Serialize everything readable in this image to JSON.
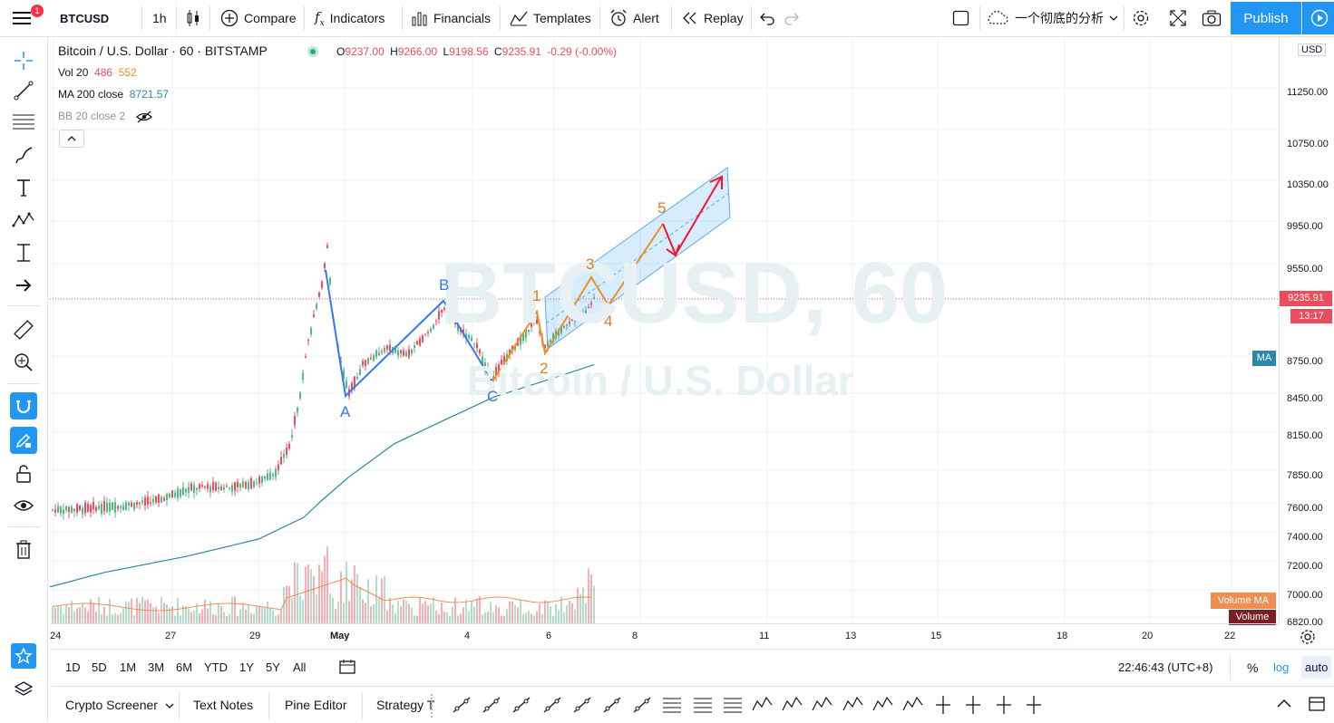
{
  "toolbar": {
    "symbol": "BTCUSD",
    "interval": "1h",
    "compare": "Compare",
    "indicators": "Indicators",
    "financials": "Financials",
    "templates": "Templates",
    "alert": "Alert",
    "replay": "Replay",
    "layout_name": "一个彻底的分析",
    "publish": "Publish",
    "notification_count": "1"
  },
  "legend": {
    "title": "Bitcoin / U.S. Dollar · 60 · BITSTAMP",
    "open_label": "O",
    "open": "9237.00",
    "high_label": "H",
    "high": "9266.00",
    "low_label": "L",
    "low": "9198.56",
    "close_label": "C",
    "close": "9235.91",
    "change": "-0.29 (-0.00%)",
    "vol_label": "Vol 20",
    "vol_1": "486",
    "vol_2": "552",
    "ma_label": "MA 200 close",
    "ma_value": "8721.57",
    "bb_label": "BB 20 close 2"
  },
  "watermark": {
    "symbol": "BTCUSD, 60",
    "name": "Bitcoin / U.S. Dollar"
  },
  "price_axis": {
    "currency": "USD",
    "labels": [
      "11250.00",
      "10750.00",
      "10350.00",
      "9950.00",
      "9550.00",
      "8750.00",
      "8450.00",
      "8150.00",
      "7850.00",
      "7600.00",
      "7400.00",
      "7200.00",
      "7000.00",
      "6820.00"
    ],
    "current_price": "9235.91",
    "countdown": "13:17",
    "ma_tag": "MA",
    "volume_ma_tag": "Volume MA",
    "volume_tag": "Volume"
  },
  "time_axis": {
    "labels": [
      "24",
      "27",
      "29",
      "May",
      "4",
      "6",
      "8",
      "11",
      "13",
      "15",
      "18",
      "20",
      "22"
    ]
  },
  "wave_labels": {
    "A": "A",
    "B": "B",
    "C": "C",
    "w1": "1",
    "w2": "2",
    "w3": "3",
    "w4": "4",
    "w5": "5"
  },
  "range_bar": {
    "ranges": [
      "1D",
      "5D",
      "1M",
      "3M",
      "6M",
      "YTD",
      "1Y",
      "5Y",
      "All"
    ],
    "clock": "22:46:43 (UTC+8)",
    "percent": "%",
    "log": "log",
    "auto": "auto"
  },
  "bottom_tabs": [
    "Crypto Screener",
    "Text Notes",
    "Pine Editor",
    "Strategy T"
  ],
  "colors": {
    "accent": "#2196f3",
    "up": "#53b987",
    "down": "#eb4d5c",
    "wave_blue": "#3179f5",
    "wave_orange": "#ef8e1f",
    "arrow_red": "#f0182a",
    "ma": "#2d87a8"
  }
}
